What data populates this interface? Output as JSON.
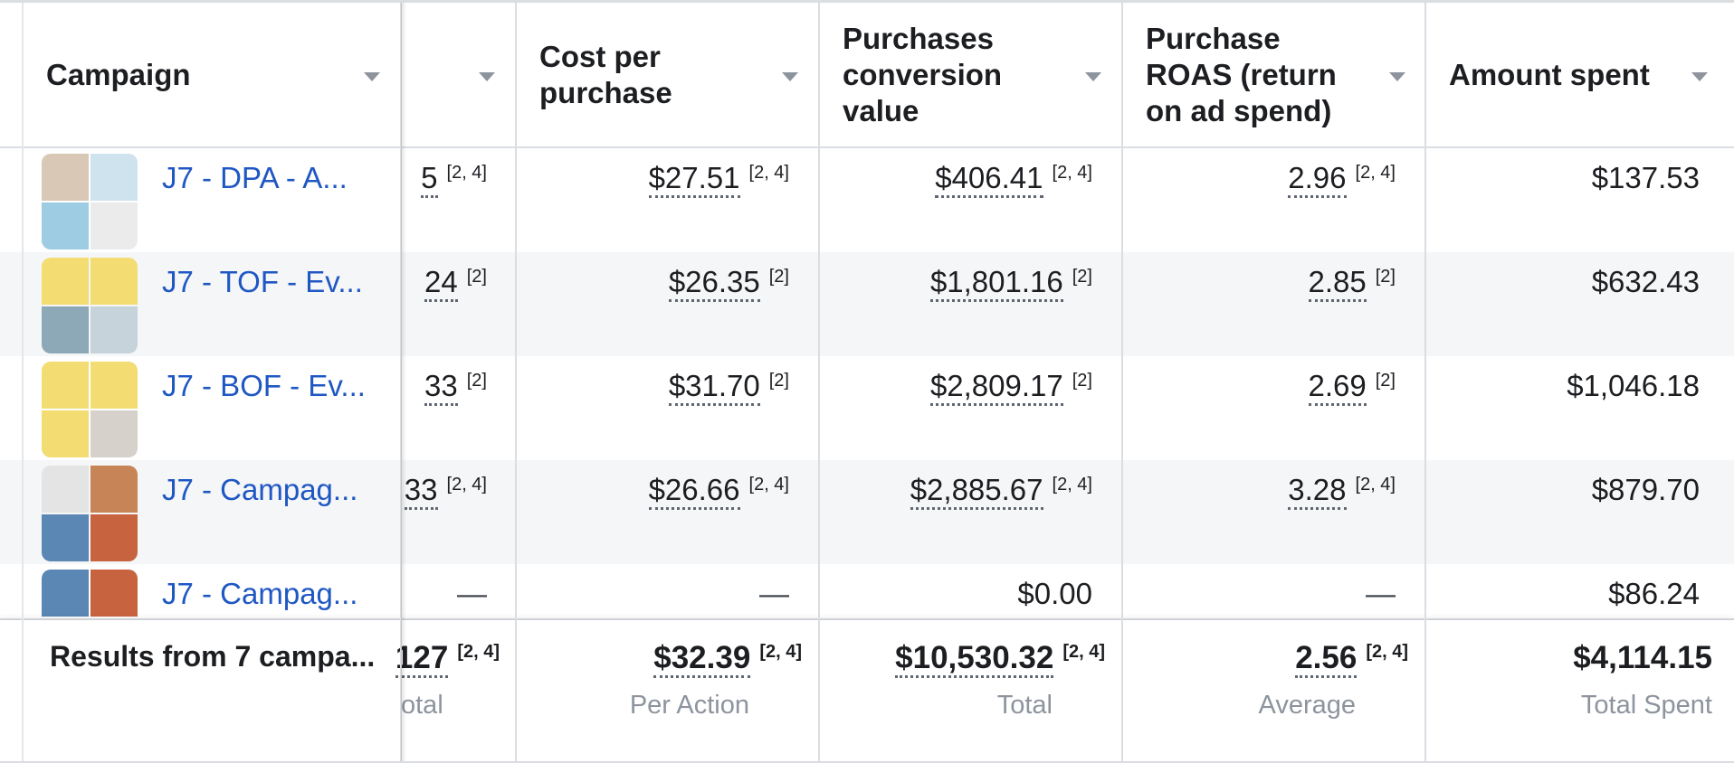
{
  "header": {
    "campaign": "Campaign",
    "cost_per_purchase": [
      "Cost per",
      "purchase"
    ],
    "purchases_conversion_value": [
      "Purchases",
      "conversion",
      "value"
    ],
    "purchase_roas": [
      "Purchase",
      "ROAS (return",
      "on ad spend)"
    ],
    "amount_spent": "Amount spent"
  },
  "rows": [
    {
      "campaign": "J7 - DPA - A...",
      "purchases": "5",
      "purchases_note": "[2, 4]",
      "cost": "$27.51",
      "cost_note": "[2, 4]",
      "value": "$406.41",
      "value_note": "[2, 4]",
      "roas": "2.96",
      "roas_note": "[2, 4]",
      "spent": "$137.53"
    },
    {
      "campaign": "J7 - TOF - Ev...",
      "purchases": "24",
      "purchases_note": "[2]",
      "cost": "$26.35",
      "cost_note": "[2]",
      "value": "$1,801.16",
      "value_note": "[2]",
      "roas": "2.85",
      "roas_note": "[2]",
      "spent": "$632.43"
    },
    {
      "campaign": "J7 - BOF - Ev...",
      "purchases": "33",
      "purchases_note": "[2]",
      "cost": "$31.70",
      "cost_note": "[2]",
      "value": "$2,809.17",
      "value_note": "[2]",
      "roas": "2.69",
      "roas_note": "[2]",
      "spent": "$1,046.18"
    },
    {
      "campaign": "J7 - Campag...",
      "purchases": "33",
      "purchases_note": "[2, 4]",
      "cost": "$26.66",
      "cost_note": "[2, 4]",
      "value": "$2,885.67",
      "value_note": "[2, 4]",
      "roas": "3.28",
      "roas_note": "[2, 4]",
      "spent": "$879.70"
    },
    {
      "campaign": "J7 - Campag...",
      "purchases": "—",
      "cost": "—",
      "value": "$0.00",
      "roas": "—",
      "spent": "$86.24"
    }
  ],
  "footer": {
    "title": "Results from 7 campa...",
    "purchases": "127",
    "purchases_note": "[2, 4]",
    "purchases_sub": "otal",
    "cost": "$32.39",
    "cost_note": "[2, 4]",
    "cost_sub": "Per Action",
    "value": "$10,530.32",
    "value_note": "[2, 4]",
    "value_sub": "Total",
    "roas": "2.56",
    "roas_note": "[2, 4]",
    "roas_sub": "Average",
    "spent": "$4,114.15",
    "spent_sub": "Total Spent"
  },
  "colors": {
    "link": "#1f57c3",
    "border": "#dadde1",
    "alt_row": "#f5f6f7",
    "muted": "#8d949e"
  }
}
